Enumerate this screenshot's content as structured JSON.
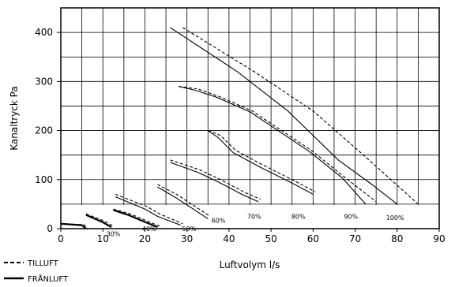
{
  "chart_data": {
    "type": "line",
    "xlabel": "Luftvolym l/s",
    "ylabel": "Kanaltryck Pa",
    "xlim": [
      0,
      90
    ],
    "ylim": [
      0,
      450
    ],
    "grid": true,
    "legend_placement": "bottom-left",
    "x_ticks": [
      "0",
      "10",
      "20",
      "30",
      "40",
      "50",
      "60",
      "70",
      "80",
      "90"
    ],
    "y_ticks": [
      "0",
      "100",
      "200",
      "300",
      "400"
    ],
    "legend": [
      {
        "name": "TILLUFT",
        "style": "dashed"
      },
      {
        "name": "FRÅNLUFT",
        "style": "solid"
      }
    ],
    "series": [
      {
        "speed": "30%",
        "tilluft": [
          [
            0.5,
            10
          ],
          [
            5.5,
            8
          ],
          [
            6.5,
            0
          ]
        ],
        "franluft": [
          [
            0,
            10
          ],
          [
            5,
            7
          ],
          [
            6,
            0
          ]
        ]
      },
      {
        "speed": "40%",
        "tilluft": [
          [
            6,
            30
          ],
          [
            10.5,
            15
          ],
          [
            12.5,
            5
          ]
        ],
        "franluft": [
          [
            6,
            28
          ],
          [
            10,
            13
          ],
          [
            12,
            3
          ]
        ]
      },
      {
        "speed": "50%",
        "tilluft": [
          [
            12.5,
            40
          ],
          [
            16.5,
            30
          ],
          [
            23.5,
            5
          ]
        ],
        "franluft": [
          [
            12.5,
            38
          ],
          [
            16,
            28
          ],
          [
            23,
            3
          ]
        ]
      },
      {
        "speed": "60%",
        "tilluft": [
          [
            13,
            70
          ],
          [
            20.5,
            45
          ],
          [
            23.5,
            30
          ],
          [
            29,
            10
          ]
        ],
        "franluft": [
          [
            13,
            65
          ],
          [
            20,
            40
          ],
          [
            23,
            25
          ],
          [
            28.5,
            7
          ]
        ]
      },
      {
        "speed": "70%",
        "tilluft": [
          [
            23,
            90
          ],
          [
            27.5,
            70
          ],
          [
            32,
            45
          ],
          [
            35.5,
            25
          ]
        ],
        "franluft": [
          [
            23,
            85
          ],
          [
            27,
            65
          ],
          [
            31.5,
            40
          ],
          [
            35,
            20
          ]
        ]
      },
      {
        "speed": "80%",
        "tilluft": [
          [
            26,
            140
          ],
          [
            33,
            120
          ],
          [
            38,
            100
          ],
          [
            43.5,
            75
          ],
          [
            47.5,
            60
          ]
        ],
        "franluft": [
          [
            26,
            135
          ],
          [
            32.5,
            115
          ],
          [
            37.5,
            95
          ],
          [
            43,
            70
          ],
          [
            47,
            55
          ]
        ]
      },
      {
        "speed": "90%",
        "tilluft": [
          [
            35,
            200
          ],
          [
            38,
            190
          ],
          [
            41.5,
            160
          ],
          [
            48,
            130
          ],
          [
            55,
            100
          ],
          [
            60.5,
            75
          ]
        ],
        "franluft": [
          [
            35,
            200
          ],
          [
            37.5,
            185
          ],
          [
            41,
            155
          ],
          [
            47.5,
            125
          ],
          [
            54.5,
            95
          ],
          [
            60,
            70
          ]
        ]
      },
      {
        "speed": "100%",
        "tilluft": [
          [
            28,
            290
          ],
          [
            32.5,
            285
          ],
          [
            37.5,
            270
          ],
          [
            45.5,
            240
          ],
          [
            52.5,
            200
          ],
          [
            59.5,
            160
          ],
          [
            67.5,
            105
          ],
          [
            75,
            55
          ]
        ],
        "franluft": [
          [
            28,
            290
          ],
          [
            32,
            282
          ],
          [
            37,
            268
          ],
          [
            45,
            238
          ],
          [
            52,
            198
          ],
          [
            59,
            158
          ],
          [
            67,
            103
          ],
          [
            72.5,
            50
          ]
        ]
      },
      {
        "speed": "",
        "tilluft": [
          [
            29,
            410
          ],
          [
            46,
            320
          ],
          [
            60,
            240
          ],
          [
            72,
            150
          ],
          [
            78.5,
            100
          ],
          [
            85,
            50
          ]
        ],
        "franluft": [
          [
            26,
            410
          ],
          [
            42,
            320
          ],
          [
            54,
            240
          ],
          [
            66,
            140
          ],
          [
            74,
            90
          ],
          [
            80,
            50
          ]
        ]
      }
    ],
    "annotations": [
      "30%",
      "40%",
      "50%",
      "60%",
      "70%",
      "80%",
      "90%",
      "100%"
    ]
  }
}
